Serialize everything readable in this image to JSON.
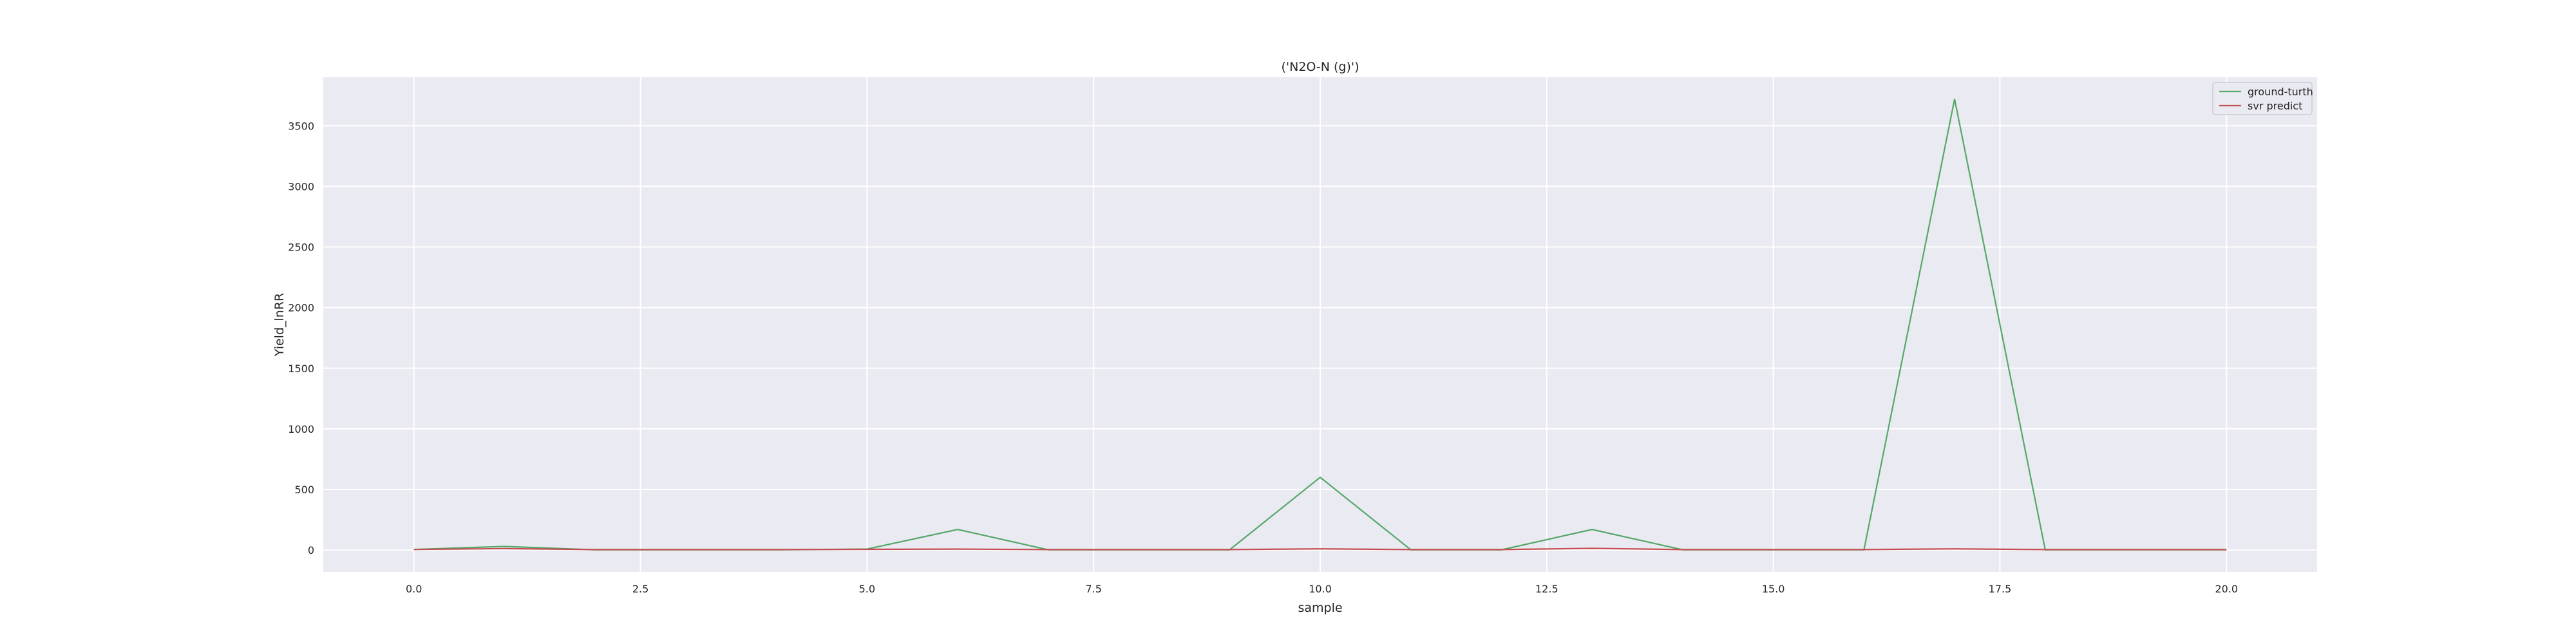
{
  "chart_data": {
    "type": "line",
    "title": "('N2O-N (g)')",
    "xlabel": "sample",
    "ylabel": "Yield_lnRR",
    "xlim": [
      -1.0,
      21.0
    ],
    "ylim": [
      -180,
      3900
    ],
    "xticks": [
      0.0,
      2.5,
      5.0,
      7.5,
      10.0,
      12.5,
      15.0,
      17.5,
      20.0
    ],
    "xtick_labels": [
      "0.0",
      "2.5",
      "5.0",
      "7.5",
      "10.0",
      "12.5",
      "15.0",
      "17.5",
      "20.0"
    ],
    "yticks": [
      0,
      500,
      1000,
      1500,
      2000,
      2500,
      3000,
      3500
    ],
    "ytick_labels": [
      "0",
      "500",
      "1000",
      "1500",
      "2000",
      "2500",
      "3000",
      "3500"
    ],
    "grid": true,
    "legend_position": "top-right",
    "x": [
      0,
      1,
      2,
      3,
      4,
      5,
      6,
      7,
      8,
      9,
      10,
      11,
      12,
      13,
      14,
      15,
      16,
      17,
      18,
      19,
      20
    ],
    "series": [
      {
        "name": "ground-turth",
        "color": "#55a868",
        "values": [
          5,
          30,
          2,
          2,
          2,
          8,
          170,
          2,
          2,
          2,
          600,
          2,
          2,
          170,
          2,
          2,
          2,
          3720,
          2,
          2,
          2
        ]
      },
      {
        "name": "svr predict",
        "color": "#c44e52",
        "values": [
          5,
          12,
          4,
          4,
          4,
          6,
          8,
          4,
          4,
          4,
          10,
          4,
          4,
          14,
          4,
          4,
          4,
          10,
          4,
          4,
          4
        ]
      }
    ]
  },
  "style": {
    "plot_background": "#eaeaf2",
    "grid_color": "#ffffff",
    "text_color": "#262626"
  }
}
